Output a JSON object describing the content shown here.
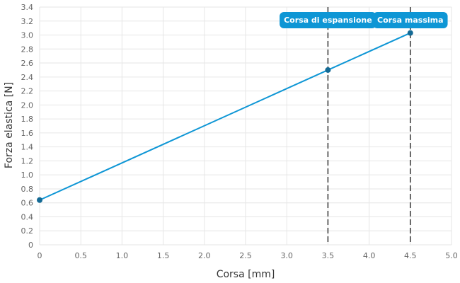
{
  "chart_data": {
    "type": "line",
    "xlabel": "Corsa [mm]",
    "ylabel": "Forza elastica [N]",
    "xlim": [
      0,
      5
    ],
    "ylim": [
      0,
      3.4
    ],
    "x_ticks": [
      "0",
      "0.5",
      "1.0",
      "1.5",
      "2.0",
      "2.5",
      "3.0",
      "3.5",
      "4.0",
      "4.5",
      "5.0"
    ],
    "y_ticks": [
      "0",
      "0.2",
      "0.4",
      "0.6",
      "0.8",
      "1.0",
      "1.2",
      "1.4",
      "1.6",
      "1.8",
      "2.0",
      "2.2",
      "2.4",
      "2.6",
      "2.8",
      "3.0",
      "3.2",
      "3.4"
    ],
    "grid": true,
    "series": [
      {
        "x": [
          0,
          3.5,
          4.5
        ],
        "y": [
          0.64,
          2.5,
          3.03
        ],
        "color": "#0e96d5"
      }
    ],
    "vertical_lines": [
      {
        "x": 3.5,
        "label": "Corsa di espansione"
      },
      {
        "x": 4.5,
        "label": "Corsa massima"
      }
    ],
    "badge_color": "#0e96d5",
    "marker_color": "#146a95"
  }
}
